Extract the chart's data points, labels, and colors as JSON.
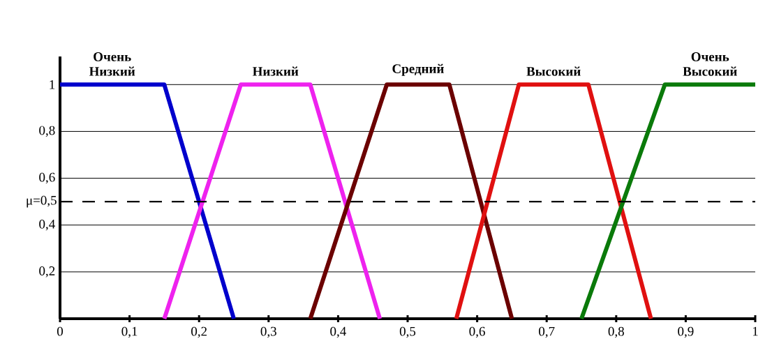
{
  "chart_data": {
    "type": "line",
    "xlim": [
      0,
      1
    ],
    "xticks": [
      {
        "value": 0,
        "label": "0"
      },
      {
        "value": 0.1,
        "label": "0,1"
      },
      {
        "value": 0.2,
        "label": "0,2"
      },
      {
        "value": 0.3,
        "label": "0,3"
      },
      {
        "value": 0.4,
        "label": "0,4"
      },
      {
        "value": 0.5,
        "label": "0,5"
      },
      {
        "value": 0.6,
        "label": "0,6"
      },
      {
        "value": 0.7,
        "label": "0,7"
      },
      {
        "value": 0.8,
        "label": "0,8"
      },
      {
        "value": 0.9,
        "label": "0,9"
      },
      {
        "value": 1,
        "label": "1"
      }
    ],
    "ylim": [
      0,
      1.12
    ],
    "yticks": [
      {
        "value": 0.2,
        "label": "0,2"
      },
      {
        "value": 0.4,
        "label": "0,4"
      },
      {
        "value": 0.6,
        "label": "0,6"
      },
      {
        "value": 0.8,
        "label": "0,8"
      },
      1
    ],
    "grid": "y",
    "series": [
      {
        "name": "Очень Низкий",
        "color": "#0000cc",
        "x": [
          0,
          0.15,
          0.25
        ],
        "values": [
          1,
          1,
          0
        ]
      },
      {
        "name": "Низкий",
        "color": "#ee22ee",
        "x": [
          0.15,
          0.26,
          0.36,
          0.46
        ],
        "values": [
          0,
          1,
          1,
          0
        ]
      },
      {
        "name": "Средний",
        "color": "#6b0000",
        "x": [
          0.36,
          0.47,
          0.56,
          0.65
        ],
        "values": [
          0,
          1,
          1,
          0
        ]
      },
      {
        "name": "Высокий",
        "color": "#e01010",
        "x": [
          0.57,
          0.66,
          0.76,
          0.85
        ],
        "values": [
          0,
          1,
          1,
          0
        ]
      },
      {
        "name": "Очень Высокий",
        "color": "#0a7a0a",
        "x": [
          0.75,
          0.87,
          1
        ],
        "values": [
          0,
          1,
          1
        ]
      }
    ],
    "ref_lines": [
      {
        "axis": "y",
        "value": 0.5,
        "label": "μ=0,5",
        "color": "#000000",
        "line_style": "dashed"
      }
    ]
  }
}
